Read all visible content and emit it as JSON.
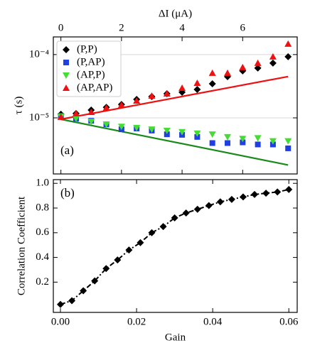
{
  "chart_data": [
    {
      "type": "scatter",
      "xlabel": "ΔI (μA)",
      "ylabel": "τ (s)",
      "annotation": "(a)",
      "xaxis_position": "top",
      "yscale": "log",
      "grid": true,
      "legend": "upper left",
      "xlim": [
        -0.25,
        7.8
      ],
      "xticks": [
        0,
        2,
        4,
        6
      ],
      "ylim": [
        1.3e-06,
        0.00019
      ],
      "yticks": [
        {
          "value": 1e-05,
          "label": "10⁻⁵"
        },
        {
          "value": 0.0001,
          "label": "10⁻⁴"
        }
      ],
      "x": [
        0,
        0.5,
        1,
        1.5,
        2,
        2.5,
        3,
        3.5,
        4,
        4.5,
        5,
        5.5,
        6,
        6.5,
        7,
        7.5
      ],
      "series": [
        {
          "name": "(P,P)",
          "color": "#000000",
          "marker": "diamond",
          "values": [
            1.14e-05,
            1.17e-05,
            1.33e-05,
            1.47e-05,
            1.63e-05,
            1.96e-05,
            2.17e-05,
            2.41e-05,
            2.54e-05,
            2.81e-05,
            3.46e-05,
            4.48e-05,
            5.52e-05,
            6.12e-05,
            7.33e-05,
            9.25e-05
          ]
        },
        {
          "name": "(P,AP)",
          "color": "#1f3fe0",
          "marker": "square",
          "values": [
            1.08e-05,
            9.7e-06,
            9e-06,
            7.9e-06,
            6.6e-06,
            6.8e-06,
            6.3e-06,
            5.5e-06,
            5.4e-06,
            5e-06,
            4e-06,
            4e-06,
            4.1e-06,
            3.8e-06,
            3.8e-06,
            3.3e-06
          ]
        },
        {
          "name": "(AP,P)",
          "color": "#44dd33",
          "marker": "triangle-down",
          "values": [
            1.05e-05,
            9.7e-06,
            8.8e-06,
            7.9e-06,
            7.3e-06,
            7e-06,
            6.6e-06,
            6.3e-06,
            6e-06,
            5.7e-06,
            5.5e-06,
            5e-06,
            4.7e-06,
            4.8e-06,
            4.3e-06,
            4.3e-06
          ]
        },
        {
          "name": "(AP,AP)",
          "color": "#ee1111",
          "marker": "triangle-up",
          "values": [
            1.03e-05,
            1.17e-05,
            1.23e-05,
            1.44e-05,
            1.59e-05,
            1.86e-05,
            2.23e-05,
            2.41e-05,
            2.96e-05,
            3.55e-05,
            5.1e-05,
            5.1e-05,
            6.27e-05,
            7.33e-05,
            9.25e-05,
            0.000147
          ]
        }
      ],
      "lines": [
        {
          "color": "#ee1111",
          "x": [
            0,
            7.5
          ],
          "values": [
            9.5e-06,
            4.5e-05
          ]
        },
        {
          "color": "#1a8a1a",
          "x": [
            0,
            7.5
          ],
          "values": [
            9.5e-06,
            1.8e-06
          ]
        }
      ]
    },
    {
      "type": "line",
      "xlabel": "Gain",
      "ylabel": "Correlation Coefficient",
      "annotation": "(b)",
      "xaxis_position": "bottom",
      "yscale": "linear",
      "linestyle": "dashdot",
      "xlim": [
        -0.00187,
        0.0622
      ],
      "xticks": [
        {
          "value": 0,
          "label": "0.00"
        },
        0.02,
        0.04,
        0.06
      ],
      "ylim": [
        -0.045,
        1.03
      ],
      "yticks": [
        0.2,
        0.4,
        0.6,
        0.8,
        {
          "value": 1,
          "label": "1.0"
        }
      ],
      "x": [
        0,
        0.003,
        0.006,
        0.009,
        0.012,
        0.015,
        0.018,
        0.021,
        0.024,
        0.027,
        0.03,
        0.033,
        0.036,
        0.039,
        0.042,
        0.045,
        0.048,
        0.051,
        0.054,
        0.057,
        0.06
      ],
      "series": [
        {
          "color": "#000000",
          "marker": "diamond",
          "values": [
            0.02,
            0.05,
            0.13,
            0.21,
            0.31,
            0.38,
            0.46,
            0.52,
            0.6,
            0.65,
            0.72,
            0.76,
            0.79,
            0.82,
            0.85,
            0.87,
            0.89,
            0.91,
            0.92,
            0.93,
            0.95
          ]
        }
      ]
    }
  ]
}
